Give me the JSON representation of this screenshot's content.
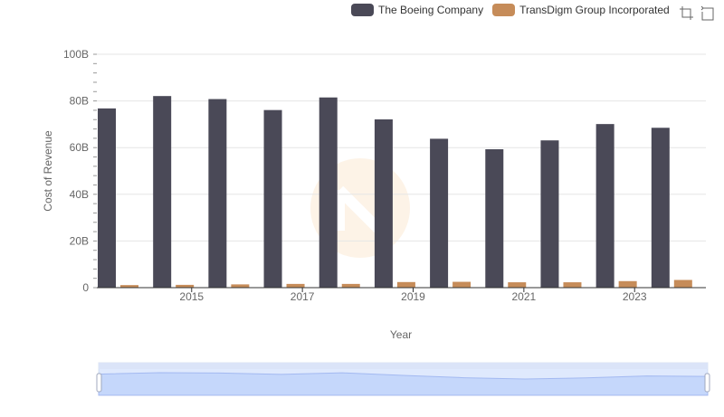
{
  "colors": {
    "boeing": "#4a4957",
    "transdigm": "#c68c59",
    "grid": "#e6e6e6",
    "axis": "#333333",
    "zoom_fill": "#d4e0fb",
    "zoom_line": "#aabbee"
  },
  "legend": {
    "boeing_label": "The Boeing Company",
    "transdigm_label": "TransDigm Group Incorporated"
  },
  "toolbox": {
    "zoom_icon": "zoom-select-icon",
    "restore_icon": "restore-icon"
  },
  "chart_data": {
    "type": "bar",
    "xlabel": "Year",
    "ylabel": "Cost of Revenue",
    "ylim": [
      0,
      100000000000
    ],
    "y_ticks": [
      "0",
      "20B",
      "40B",
      "60B",
      "80B",
      "100B"
    ],
    "categories": [
      "2014",
      "2015",
      "2016",
      "2017",
      "2018",
      "2019",
      "2020",
      "2021",
      "2022",
      "2023",
      "2024"
    ],
    "x_tick_labels": [
      "2015",
      "2017",
      "2019",
      "2021",
      "2023"
    ],
    "series": [
      {
        "name": "The Boeing Company",
        "values": [
          76800000000,
          82100000000,
          80800000000,
          76100000000,
          81500000000,
          72100000000,
          63800000000,
          59300000000,
          63100000000,
          70100000000,
          68500000000
        ]
      },
      {
        "name": "TransDigm Group Incorporated",
        "values": [
          1100000000,
          1200000000,
          1400000000,
          1600000000,
          1600000000,
          2400000000,
          2500000000,
          2300000000,
          2300000000,
          2800000000,
          3300000000
        ]
      }
    ],
    "grid": true,
    "legend_position": "top-right",
    "data_zoom": true
  }
}
